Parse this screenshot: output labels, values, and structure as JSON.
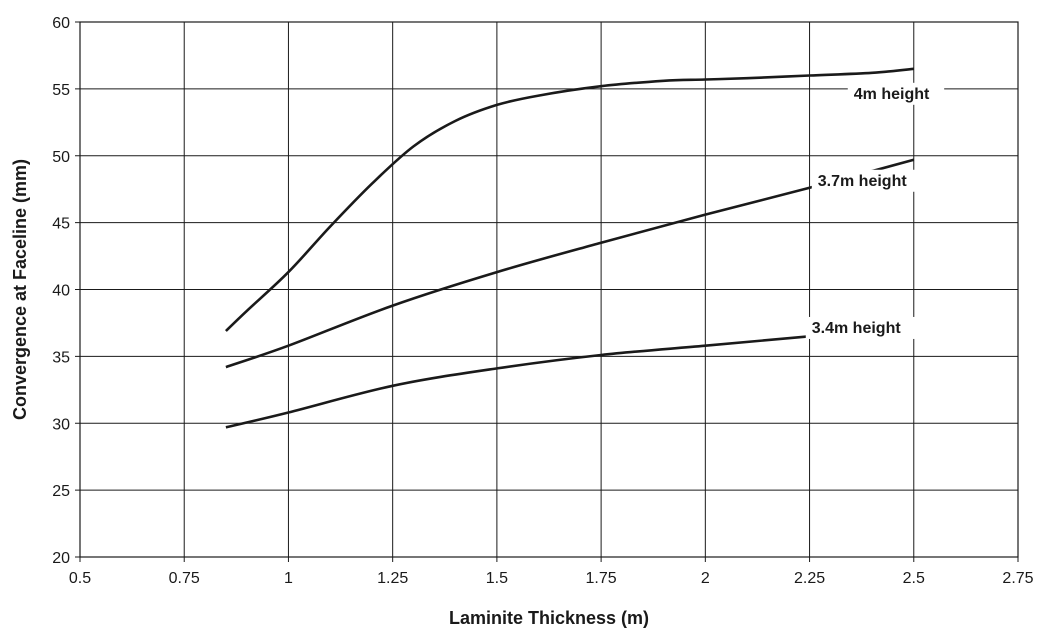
{
  "chart_data": {
    "type": "line",
    "xlabel": "Laminite Thickness (m)",
    "ylabel": "Convergence at Faceline (mm)",
    "xlim": [
      0.5,
      2.75
    ],
    "ylim": [
      20,
      60
    ],
    "xticks": [
      0.5,
      0.75,
      1,
      1.25,
      1.5,
      1.75,
      2,
      2.25,
      2.5,
      2.75
    ],
    "xtick_labels": [
      "0.5",
      "0.75",
      "1",
      "1.25",
      "1.5",
      "1.75",
      "2",
      "2.25",
      "2.5",
      "2.75"
    ],
    "yticks": [
      20,
      25,
      30,
      35,
      40,
      45,
      50,
      55,
      60
    ],
    "ytick_labels": [
      "20",
      "25",
      "30",
      "35",
      "40",
      "45",
      "50",
      "55",
      "60"
    ],
    "grid": true,
    "legend": "none",
    "line_color": "#1a1a1a",
    "series": [
      {
        "name": "4m height",
        "x": [
          0.85,
          0.9,
          1.0,
          1.1,
          1.2,
          1.3,
          1.4,
          1.5,
          1.6,
          1.75,
          1.9,
          2.0,
          2.1,
          2.25,
          2.4,
          2.5
        ],
        "y": [
          36.9,
          38.4,
          41.3,
          44.7,
          47.9,
          50.7,
          52.6,
          53.8,
          54.5,
          55.2,
          55.6,
          55.7,
          55.8,
          56.0,
          56.2,
          56.5
        ]
      },
      {
        "name": "3.7m height",
        "x": [
          0.85,
          1.0,
          1.25,
          1.5,
          1.75,
          2.0,
          2.25,
          2.5
        ],
        "y": [
          34.2,
          35.8,
          38.8,
          41.3,
          43.5,
          45.6,
          47.6,
          49.7
        ]
      },
      {
        "name": "3.4m height",
        "x": [
          0.85,
          1.0,
          1.25,
          1.5,
          1.75,
          2.0,
          2.25,
          2.5
        ],
        "y": [
          29.7,
          30.8,
          32.8,
          34.1,
          35.1,
          35.8,
          36.5,
          37.2
        ]
      }
    ]
  }
}
